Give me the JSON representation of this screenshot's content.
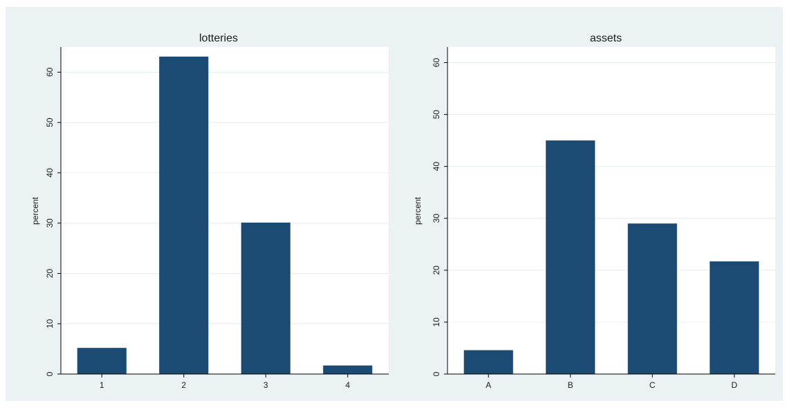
{
  "chart_data": [
    {
      "type": "bar",
      "title": "lotteries",
      "xlabel": "",
      "ylabel": "percent",
      "categories": [
        "1",
        "2",
        "3",
        "4"
      ],
      "values": [
        5.2,
        63.1,
        30.1,
        1.7
      ],
      "ylim": [
        0,
        65
      ],
      "yticks": [
        0,
        10,
        20,
        30,
        40,
        50,
        60
      ],
      "grid": true,
      "bar_color": "#1b4a72"
    },
    {
      "type": "bar",
      "title": "assets",
      "xlabel": "",
      "ylabel": "percent",
      "categories": [
        "A",
        "B",
        "C",
        "D"
      ],
      "values": [
        4.6,
        45.0,
        29.0,
        21.7
      ],
      "ylim": [
        0,
        63
      ],
      "yticks": [
        0,
        10,
        20,
        30,
        40,
        50,
        60
      ],
      "grid": true,
      "bar_color": "#1b4a72"
    }
  ],
  "colors": {
    "outer_background": "#eaf2f3",
    "plot_background": "#ffffff",
    "grid": "#e6eef0",
    "axis": "#000000"
  }
}
